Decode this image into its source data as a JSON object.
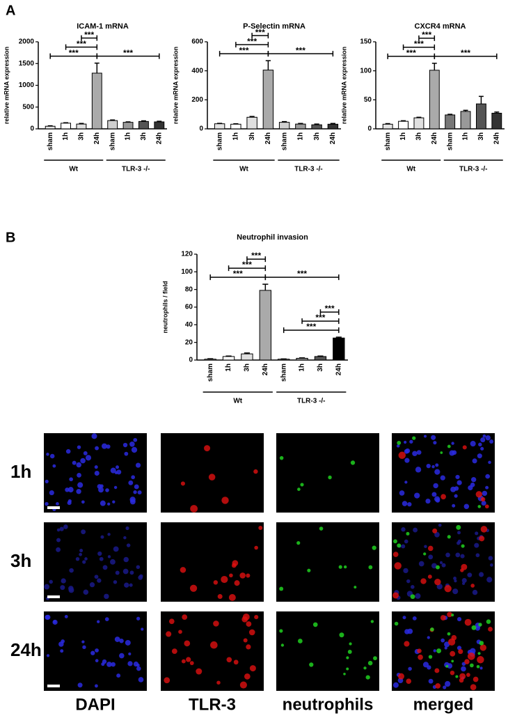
{
  "panels": {
    "a": "A",
    "b": "B"
  },
  "chart_data": [
    {
      "type": "bar",
      "title": "ICAM-1 mRNA",
      "ylabel": "relative mRNA expression",
      "categories": [
        "sham",
        "1h",
        "3h",
        "24h",
        "sham",
        "1h",
        "3h",
        "24h"
      ],
      "values": [
        60,
        130,
        110,
        1280,
        190,
        150,
        170,
        160
      ],
      "errors": [
        10,
        10,
        15,
        230,
        15,
        10,
        15,
        15
      ],
      "colors": [
        "#e4e4e4",
        "#ffffff",
        "#e0e0e0",
        "#aaaaaa",
        "#cfcfcf",
        "#999999",
        "#555555",
        "#333333"
      ],
      "groups": [
        "Wt",
        "TLR-3 -/-"
      ],
      "ylim": [
        0,
        2000
      ],
      "yticks": [
        0,
        500,
        1000,
        1500,
        2000
      ],
      "significance": [
        {
          "label": "***",
          "span": [
            0,
            3
          ]
        },
        {
          "label": "***",
          "span": [
            1,
            3
          ]
        },
        {
          "label": "***",
          "span": [
            2,
            3
          ]
        },
        {
          "label": "***",
          "span": [
            3,
            7
          ]
        }
      ]
    },
    {
      "type": "bar",
      "title": "P-Selectin mRNA",
      "ylabel": "relative mRNA expression",
      "categories": [
        "sham",
        "1h",
        "3h",
        "24h",
        "sham",
        "1h",
        "3h",
        "24h"
      ],
      "values": [
        35,
        32,
        80,
        405,
        45,
        33,
        28,
        32
      ],
      "errors": [
        3,
        3,
        5,
        65,
        5,
        4,
        5,
        5
      ],
      "colors": [
        "#e4e4e4",
        "#ffffff",
        "#e0e0e0",
        "#aaaaaa",
        "#cfcfcf",
        "#999999",
        "#555555",
        "#333333"
      ],
      "groups": [
        "Wt",
        "TLR-3 -/-"
      ],
      "ylim": [
        0,
        600
      ],
      "yticks": [
        0,
        200,
        400,
        600
      ],
      "significance": [
        {
          "label": "***",
          "span": [
            0,
            3
          ]
        },
        {
          "label": "***",
          "span": [
            1,
            3
          ]
        },
        {
          "label": "***",
          "span": [
            2,
            3
          ]
        },
        {
          "label": "***",
          "span": [
            3,
            7
          ]
        }
      ]
    },
    {
      "type": "bar",
      "title": "CXCR4 mRNA",
      "ylabel": "relative mRNA expression",
      "categories": [
        "sham",
        "1h",
        "3h",
        "24h",
        "sham",
        "1h",
        "3h",
        "24h"
      ],
      "values": [
        8,
        13,
        19,
        101,
        24,
        30,
        43,
        27
      ],
      "errors": [
        1,
        1,
        1,
        12,
        1,
        2,
        13,
        2
      ],
      "colors": [
        "#e4e4e4",
        "#ffffff",
        "#e0e0e0",
        "#aaaaaa",
        "#777777",
        "#999999",
        "#555555",
        "#333333"
      ],
      "groups": [
        "Wt",
        "TLR-3 -/-"
      ],
      "ylim": [
        0,
        150
      ],
      "yticks": [
        0,
        50,
        100,
        150
      ],
      "significance": [
        {
          "label": "***",
          "span": [
            0,
            3
          ]
        },
        {
          "label": "***",
          "span": [
            1,
            3
          ]
        },
        {
          "label": "***",
          "span": [
            2,
            3
          ]
        },
        {
          "label": "***",
          "span": [
            3,
            7
          ]
        }
      ]
    },
    {
      "type": "bar",
      "title": "Neutrophil invasion",
      "ylabel": "neutrophils / field",
      "categories": [
        "sham",
        "1h",
        "3h",
        "24h",
        "sham",
        "1h",
        "3h",
        "24h"
      ],
      "values": [
        1,
        4,
        7,
        79,
        1,
        2,
        4,
        25
      ],
      "errors": [
        0.5,
        0.5,
        1,
        7,
        0.3,
        0.5,
        0.5,
        1
      ],
      "colors": [
        "#e4e4e4",
        "#ffffff",
        "#e0e0e0",
        "#aaaaaa",
        "#cfcfcf",
        "#999999",
        "#555555",
        "#000000"
      ],
      "groups": [
        "Wt",
        "TLR-3 -/-"
      ],
      "ylim": [
        0,
        120
      ],
      "yticks": [
        0,
        20,
        40,
        60,
        80,
        100,
        120
      ],
      "significance": [
        {
          "label": "***",
          "span": [
            0,
            3
          ]
        },
        {
          "label": "***",
          "span": [
            1,
            3
          ]
        },
        {
          "label": "***",
          "span": [
            2,
            3
          ]
        },
        {
          "label": "***",
          "span": [
            3,
            7
          ]
        },
        {
          "label": "***",
          "span": [
            4,
            7
          ]
        },
        {
          "label": "***",
          "span": [
            5,
            7
          ]
        },
        {
          "label": "***",
          "span": [
            6,
            7
          ]
        }
      ]
    }
  ],
  "micrographs": {
    "rows": [
      "1h",
      "3h",
      "24h"
    ],
    "columns": [
      "DAPI",
      "TLR-3",
      "neutrophils",
      "merged"
    ]
  }
}
